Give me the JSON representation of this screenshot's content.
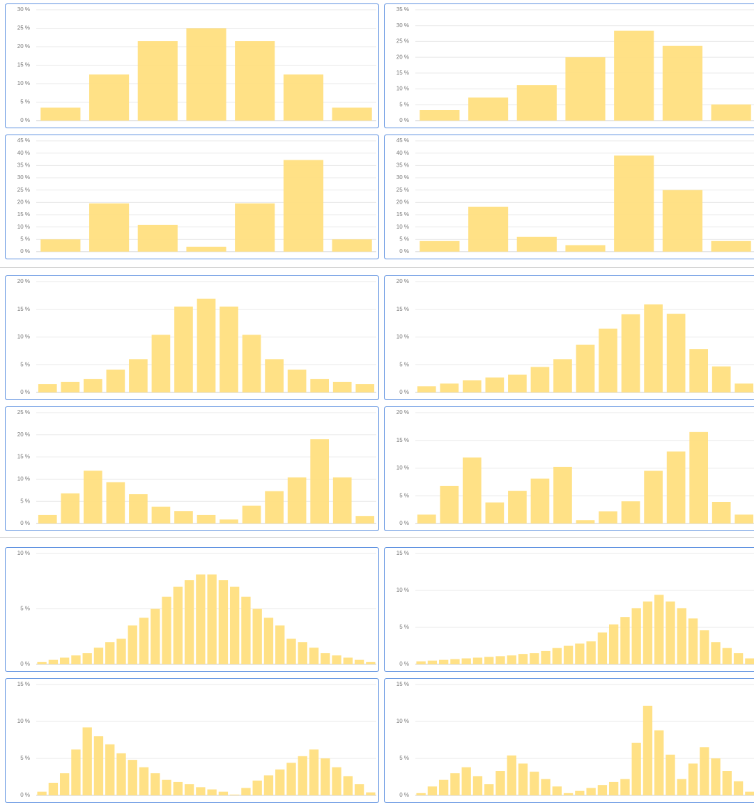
{
  "chart_data": [
    {
      "type": "bar",
      "color": "#ffdf80",
      "grid": true,
      "ylim": [
        0,
        30
      ],
      "yticks": [
        {
          "value": 0,
          "label": "0 %"
        },
        {
          "value": 5,
          "label": "5 %"
        },
        {
          "value": 10,
          "label": "10 %"
        },
        {
          "value": 15,
          "label": "15 %"
        },
        {
          "value": 20,
          "label": "20 %"
        },
        {
          "value": 25,
          "label": "25 %"
        },
        {
          "value": 30,
          "label": "30 %"
        }
      ],
      "values": [
        3.5,
        12.5,
        21.5,
        25,
        21.5,
        12.5,
        3.5
      ]
    },
    {
      "type": "bar",
      "color": "#ffdf80",
      "grid": true,
      "ylim": [
        0,
        35
      ],
      "yticks": [
        {
          "value": 0,
          "label": "0 %"
        },
        {
          "value": 5,
          "label": "5 %"
        },
        {
          "value": 10,
          "label": "10 %"
        },
        {
          "value": 15,
          "label": "15 %"
        },
        {
          "value": 20,
          "label": "20 %"
        },
        {
          "value": 25,
          "label": "25 %"
        },
        {
          "value": 30,
          "label": "30 %"
        },
        {
          "value": 35,
          "label": "35 %"
        }
      ],
      "values": [
        3.3,
        7.3,
        11.2,
        20,
        28.4,
        23.6,
        5.1
      ]
    },
    {
      "type": "bar",
      "color": "#ffdf80",
      "grid": true,
      "ylim": [
        0,
        45
      ],
      "yticks": [
        {
          "value": 0,
          "label": "0 %"
        },
        {
          "value": 5,
          "label": "5 %"
        },
        {
          "value": 10,
          "label": "10 %"
        },
        {
          "value": 15,
          "label": "15 %"
        },
        {
          "value": 20,
          "label": "20 %"
        },
        {
          "value": 25,
          "label": "25 %"
        },
        {
          "value": 30,
          "label": "30 %"
        },
        {
          "value": 35,
          "label": "35 %"
        },
        {
          "value": 40,
          "label": "40 %"
        },
        {
          "value": 45,
          "label": "45 %"
        }
      ],
      "values": [
        5,
        19.6,
        10.8,
        2,
        19.6,
        37.2,
        5
      ]
    },
    {
      "type": "bar",
      "color": "#ffdf80",
      "grid": true,
      "ylim": [
        0,
        45
      ],
      "yticks": [
        {
          "value": 0,
          "label": "0 %"
        },
        {
          "value": 5,
          "label": "5 %"
        },
        {
          "value": 10,
          "label": "10 %"
        },
        {
          "value": 15,
          "label": "15 %"
        },
        {
          "value": 20,
          "label": "20 %"
        },
        {
          "value": 25,
          "label": "25 %"
        },
        {
          "value": 30,
          "label": "30 %"
        },
        {
          "value": 35,
          "label": "35 %"
        },
        {
          "value": 40,
          "label": "40 %"
        },
        {
          "value": 45,
          "label": "45 %"
        }
      ],
      "values": [
        4.3,
        18.2,
        6,
        2.6,
        39,
        25,
        4.3
      ]
    },
    {
      "type": "bar",
      "color": "#ffdf80",
      "grid": true,
      "ylim": [
        0,
        20
      ],
      "yticks": [
        {
          "value": 0,
          "label": "0 %"
        },
        {
          "value": 5,
          "label": "5 %"
        },
        {
          "value": 10,
          "label": "10 %"
        },
        {
          "value": 15,
          "label": "15 %"
        },
        {
          "value": 20,
          "label": "20 %"
        }
      ],
      "values": [
        1.5,
        1.9,
        2.4,
        4.1,
        6,
        10.4,
        15.5,
        16.9,
        15.5,
        10.4,
        6,
        4.1,
        2.4,
        1.9,
        1.5
      ]
    },
    {
      "type": "bar",
      "color": "#ffdf80",
      "grid": true,
      "ylim": [
        0,
        20
      ],
      "yticks": [
        {
          "value": 0,
          "label": "0 %"
        },
        {
          "value": 5,
          "label": "5 %"
        },
        {
          "value": 10,
          "label": "10 %"
        },
        {
          "value": 15,
          "label": "15 %"
        },
        {
          "value": 20,
          "label": "20 %"
        }
      ],
      "values": [
        1.1,
        1.6,
        2.2,
        2.7,
        3.2,
        4.6,
        6,
        8.6,
        11.5,
        14.1,
        15.9,
        14.2,
        7.8,
        4.7,
        1.6
      ]
    },
    {
      "type": "bar",
      "color": "#ffdf80",
      "grid": true,
      "ylim": [
        0,
        25
      ],
      "yticks": [
        {
          "value": 0,
          "label": "0 %"
        },
        {
          "value": 5,
          "label": "5 %"
        },
        {
          "value": 10,
          "label": "10 %"
        },
        {
          "value": 15,
          "label": "15 %"
        },
        {
          "value": 20,
          "label": "20 %"
        },
        {
          "value": 25,
          "label": "25 %"
        }
      ],
      "values": [
        1.9,
        6.8,
        11.9,
        9.3,
        6.6,
        3.8,
        2.8,
        1.9,
        0.9,
        4,
        7.3,
        10.4,
        19,
        10.4,
        1.7
      ]
    },
    {
      "type": "bar",
      "color": "#ffdf80",
      "grid": true,
      "ylim": [
        0,
        20
      ],
      "yticks": [
        {
          "value": 0,
          "label": "0 %"
        },
        {
          "value": 5,
          "label": "5 %"
        },
        {
          "value": 10,
          "label": "10 %"
        },
        {
          "value": 15,
          "label": "15 %"
        },
        {
          "value": 20,
          "label": "20 %"
        }
      ],
      "values": [
        1.6,
        6.8,
        11.9,
        3.8,
        5.9,
        8.1,
        10.2,
        0.6,
        2.2,
        4,
        9.5,
        13,
        16.5,
        3.9,
        1.6
      ]
    },
    {
      "type": "bar",
      "color": "#ffdf80",
      "grid": true,
      "ylim": [
        0,
        10
      ],
      "yticks": [
        {
          "value": 0,
          "label": "0 %"
        },
        {
          "value": 5,
          "label": "5 %"
        },
        {
          "value": 10,
          "label": "10 %"
        }
      ],
      "values": [
        0.2,
        0.4,
        0.6,
        0.8,
        1,
        1.5,
        2,
        2.3,
        3.5,
        4.2,
        5,
        6.1,
        7,
        7.6,
        8.1,
        8.1,
        7.6,
        7,
        6.1,
        5,
        4.2,
        3.5,
        2.3,
        2,
        1.5,
        1,
        0.8,
        0.6,
        0.4,
        0.2
      ]
    },
    {
      "type": "bar",
      "color": "#ffdf80",
      "grid": true,
      "ylim": [
        0,
        15
      ],
      "yticks": [
        {
          "value": 0,
          "label": "0 %"
        },
        {
          "value": 5,
          "label": "5 %"
        },
        {
          "value": 10,
          "label": "10 %"
        },
        {
          "value": 15,
          "label": "15 %"
        }
      ],
      "values": [
        0.4,
        0.5,
        0.6,
        0.7,
        0.8,
        0.9,
        1,
        1.1,
        1.2,
        1.4,
        1.5,
        1.8,
        2.2,
        2.5,
        2.8,
        3.1,
        4.3,
        5.4,
        6.4,
        7.6,
        8.5,
        9.4,
        8.5,
        7.6,
        6.2,
        4.6,
        3,
        2.2,
        1.5,
        0.8
      ]
    },
    {
      "type": "bar",
      "color": "#ffdf80",
      "grid": true,
      "ylim": [
        0,
        15
      ],
      "yticks": [
        {
          "value": 0,
          "label": "0 %"
        },
        {
          "value": 5,
          "label": "5 %"
        },
        {
          "value": 10,
          "label": "10 %"
        },
        {
          "value": 15,
          "label": "15 %"
        }
      ],
      "values": [
        0.5,
        1.7,
        3,
        6.2,
        9.2,
        8,
        6.9,
        5.7,
        4.8,
        3.8,
        3,
        2.1,
        1.8,
        1.5,
        1.1,
        0.8,
        0.5,
        0.1,
        1,
        2,
        2.7,
        3.5,
        4.4,
        5.3,
        6.2,
        5,
        3.8,
        2.6,
        1.5,
        0.4
      ]
    },
    {
      "type": "bar",
      "color": "#ffdf80",
      "grid": true,
      "ylim": [
        0,
        15
      ],
      "yticks": [
        {
          "value": 0,
          "label": "0 %"
        },
        {
          "value": 5,
          "label": "5 %"
        },
        {
          "value": 10,
          "label": "10 %"
        },
        {
          "value": 15,
          "label": "15 %"
        }
      ],
      "values": [
        0.3,
        1.2,
        2.1,
        3,
        3.8,
        2.6,
        1.5,
        3.3,
        5.4,
        4.3,
        3.2,
        2.2,
        1.2,
        0.3,
        0.6,
        1,
        1.4,
        1.8,
        2.2,
        7.1,
        12.1,
        8.8,
        5.5,
        2.2,
        4.3,
        6.5,
        5,
        3.3,
        1.9,
        0.5
      ]
    }
  ]
}
